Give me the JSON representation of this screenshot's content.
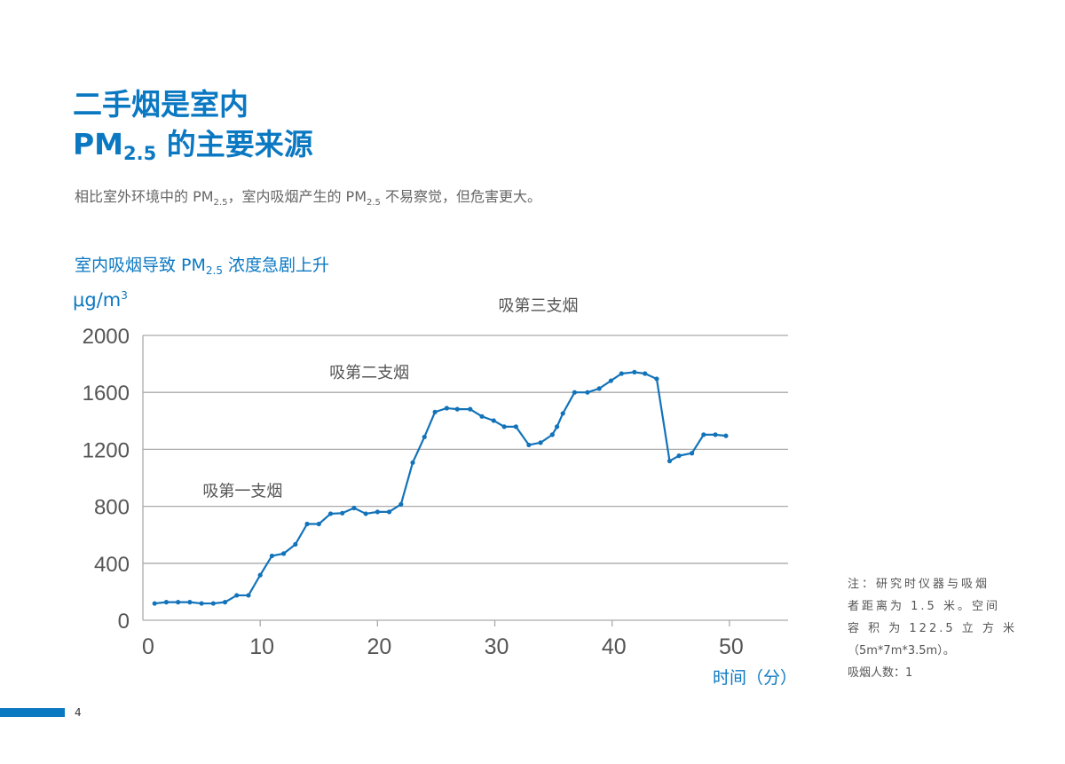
{
  "header": {
    "title_line1": "二手烟是室内",
    "title_line2_prefix": "PM",
    "title_line2_sub": "2.5",
    "title_line2_suffix": " 的主要来源",
    "subtitle_part1": "相比室外环境中的 PM",
    "subtitle_sub1": "2.5",
    "subtitle_part2": "，室内吸烟产生的 PM",
    "subtitle_sub2": "2.5",
    "subtitle_part3": " 不易察觉，但危害更大。"
  },
  "chart_data": {
    "type": "line",
    "title_prefix": "室内吸烟导致 PM",
    "title_sub": "2.5",
    "title_suffix": " 浓度急剧上升",
    "ylabel": "μg/m",
    "ylabel_sup": "3",
    "xlabel": "时间（分）",
    "xlim": [
      0,
      55
    ],
    "ylim": [
      0,
      2000
    ],
    "xticks": [
      0,
      10,
      20,
      30,
      40,
      50
    ],
    "yticks": [
      0,
      400,
      800,
      1200,
      1600,
      2000
    ],
    "grid": "horizontal",
    "color": "#1273b9",
    "x": [
      1,
      2,
      3,
      4,
      5,
      6,
      7,
      8,
      9,
      10,
      11,
      12,
      13,
      14,
      15,
      16,
      17,
      18,
      19,
      20,
      21,
      22,
      23,
      24,
      24.9,
      25.9,
      26.8,
      27.9,
      28.9,
      29.9,
      30.8,
      31.8,
      32.9,
      33.9,
      34.9,
      35.3,
      35.8,
      36.8,
      37.9,
      38.9,
      39.9,
      40.8,
      41.9,
      42.8,
      43.8,
      44.9,
      45.7,
      46.8,
      47.8,
      48.8,
      49.7
    ],
    "values": [
      118,
      127,
      127,
      127,
      118,
      118,
      127,
      175,
      175,
      317,
      452,
      468,
      533,
      676,
      676,
      748,
      752,
      788,
      748,
      761,
      761,
      814,
      1107,
      1287,
      1462,
      1489,
      1482,
      1482,
      1431,
      1402,
      1359,
      1359,
      1231,
      1247,
      1303,
      1359,
      1452,
      1600,
      1600,
      1627,
      1682,
      1732,
      1742,
      1732,
      1695,
      1118,
      1155,
      1173,
      1303,
      1303,
      1295
    ],
    "annotations": [
      {
        "text": "吸第一支烟",
        "x": 5.1,
        "y": 870
      },
      {
        "text": "吸第二支烟",
        "x": 15.9,
        "y": 1700
      },
      {
        "text": "吸第三支烟",
        "x": 30.3,
        "y": 2170
      }
    ]
  },
  "note": {
    "lines": [
      "注：研究时仪器与吸烟",
      "者距离为 1.5 米。空间",
      "容 积 为 122.5 立 方 米",
      "（5m*7m*3.5m）。",
      "吸烟人数：1"
    ]
  },
  "footer": {
    "page_number": "4",
    "accent": "#0b78c2"
  }
}
